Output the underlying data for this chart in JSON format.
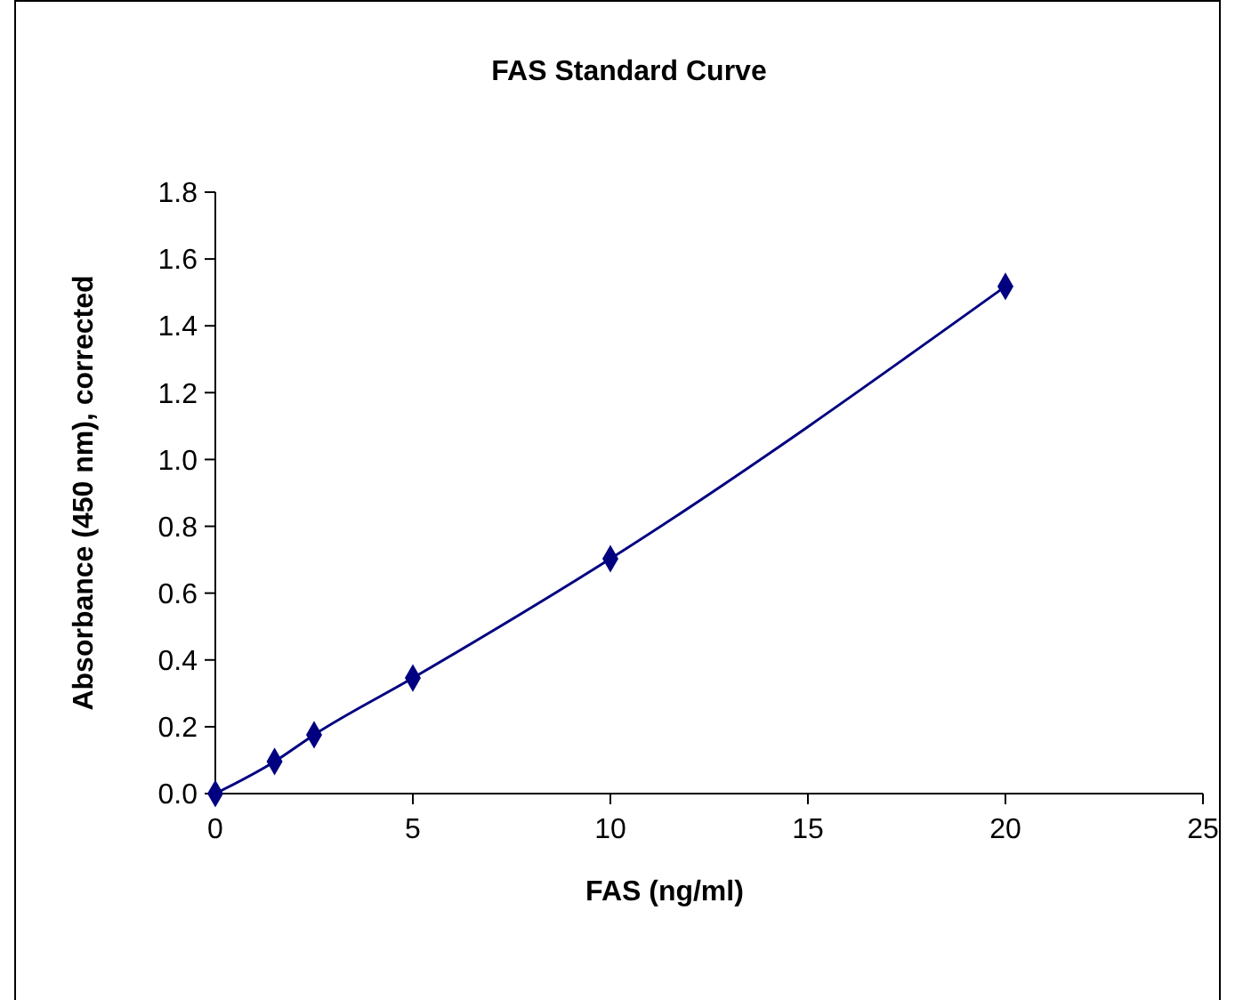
{
  "chart_data": {
    "type": "line",
    "title": "FAS Standard Curve",
    "xlabel": "FAS (ng/ml)",
    "ylabel": "Absorbance (450 nm), corrected",
    "x": [
      0,
      1.5,
      2.5,
      5,
      10,
      20
    ],
    "series": [
      {
        "color": "#000080",
        "values": [
          0,
          0.096,
          0.176,
          0.346,
          0.703,
          1.518
        ]
      }
    ],
    "xlim": [
      0,
      25
    ],
    "xticks": [
      0,
      5,
      10,
      15,
      20,
      25
    ],
    "ylim": [
      0,
      1.8
    ],
    "yticks": [
      {
        "value": 0,
        "label": "0.0"
      },
      {
        "value": 0.2,
        "label": "0.2"
      },
      {
        "value": 0.4,
        "label": "0.4"
      },
      {
        "value": 0.6,
        "label": "0.6"
      },
      {
        "value": 0.8,
        "label": "0.8"
      },
      {
        "value": 1,
        "label": "1.0"
      },
      {
        "value": 1.2,
        "label": "1.2"
      },
      {
        "value": 1.4,
        "label": "1.4"
      },
      {
        "value": 1.6,
        "label": "1.6"
      },
      {
        "value": 1.8,
        "label": "1.8"
      }
    ],
    "grid": false,
    "marker": "diamond",
    "line_style": "solid"
  }
}
